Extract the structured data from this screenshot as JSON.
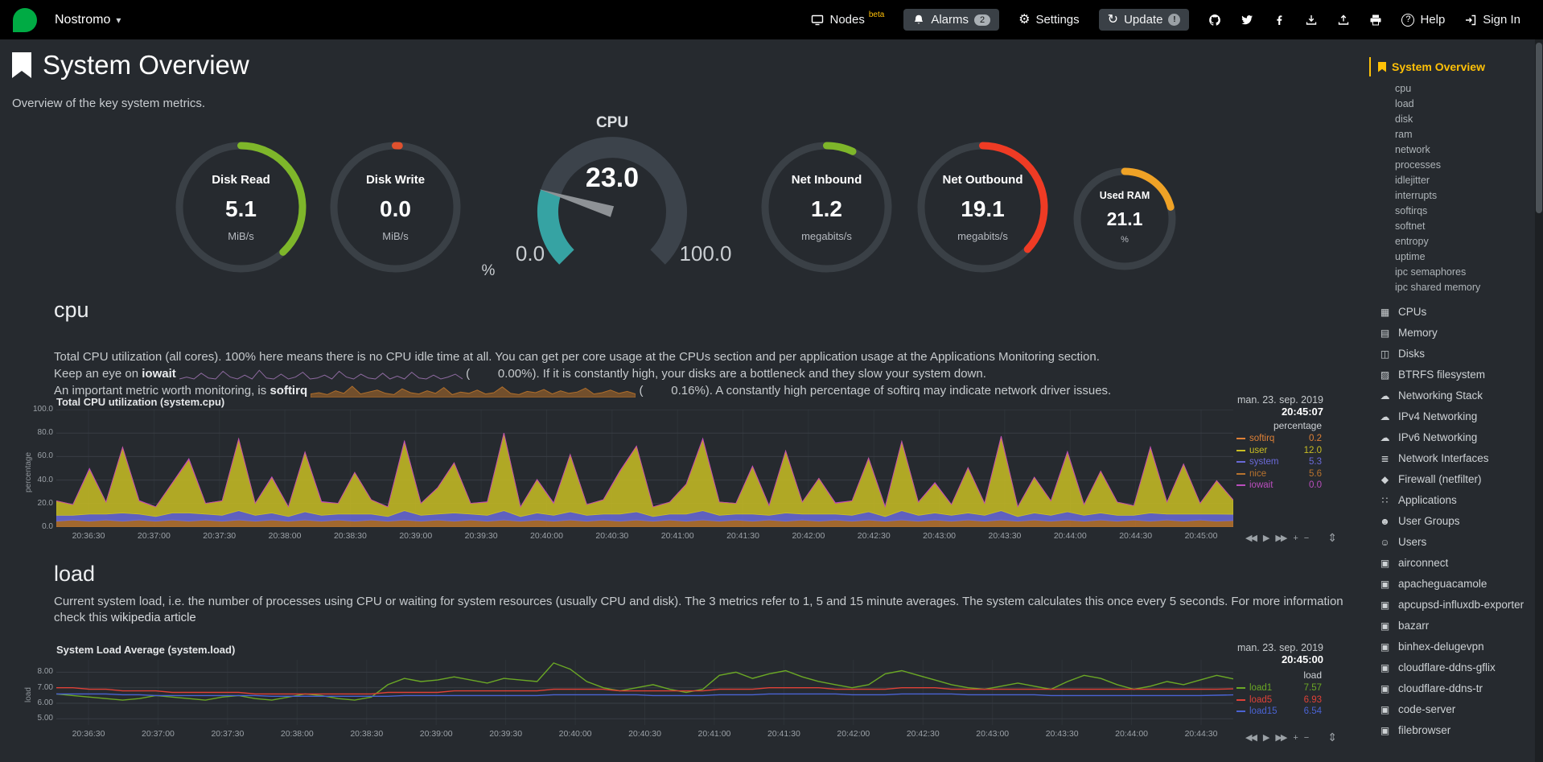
{
  "topbar": {
    "hostname": "Nostromo",
    "items": [
      {
        "id": "nodes",
        "icon": "nodes",
        "label": "Nodes",
        "badge": "beta",
        "badge_style": "beta"
      },
      {
        "id": "alarms",
        "icon": "bell",
        "label": "Alarms",
        "badge": "2",
        "badge_style": "pill",
        "button": true
      },
      {
        "id": "settings",
        "icon": "gear",
        "label": "Settings"
      },
      {
        "id": "update",
        "icon": "sync",
        "label": "Update",
        "badge": "!",
        "badge_style": "circle",
        "button": true
      },
      {
        "id": "github",
        "icon": "github"
      },
      {
        "id": "twitter",
        "icon": "twitter"
      },
      {
        "id": "facebook",
        "icon": "facebook"
      },
      {
        "id": "download",
        "icon": "download"
      },
      {
        "id": "upload",
        "icon": "upload"
      },
      {
        "id": "print",
        "icon": "print"
      },
      {
        "id": "help",
        "icon": "help",
        "label": "Help"
      },
      {
        "id": "signin",
        "icon": "sign-in",
        "label": "Sign In"
      }
    ]
  },
  "page": {
    "title": "System Overview",
    "subtitle": "Overview of the key system metrics."
  },
  "gauges": {
    "disk_read": {
      "title": "Disk Read",
      "value": "5.1",
      "units": "MiB/s",
      "percent": 38,
      "color": "#7EB62A"
    },
    "disk_write": {
      "title": "Disk Write",
      "value": "0.0",
      "units": "MiB/s",
      "percent": 1,
      "color": "#E0512E"
    },
    "cpu": {
      "title": "CPU",
      "value": "23.0",
      "units": "%",
      "min": "0.0",
      "max": "100.0",
      "percent": 23,
      "color": "#36A3A3"
    },
    "net_inbound": {
      "title": "Net Inbound",
      "value": "1.2",
      "units": "megabits/s",
      "percent": 7,
      "color": "#7EB62A"
    },
    "net_outbound": {
      "title": "Net Outbound",
      "value": "19.1",
      "units": "megabits/s",
      "percent": 37,
      "color": "#EF3B24"
    },
    "used_ram": {
      "title": "Used RAM",
      "value": "21.1",
      "units": "%",
      "percent": 21,
      "color": "#EFA226"
    }
  },
  "cpu_section": {
    "heading": "cpu",
    "desc1": "Total CPU utilization (all cores). 100% here means there is no CPU idle time at all. You can get per core usage at the CPUs section and per application usage at the Applications Monitoring section.",
    "desc2_pre": "Keep an eye on ",
    "desc2_bold": "iowait",
    "desc2_open": " (",
    "desc2_value": "0.00",
    "desc2_post": "%). If it is constantly high, your disks are a bottleneck and they slow your system down.",
    "desc3_pre": "An important metric worth monitoring, is ",
    "desc3_bold": "softirq",
    "desc3_open": " (",
    "desc3_value": "0.16",
    "desc3_post": "%). A constantly high percentage of softirq may indicate network driver issues.",
    "iowait_spark": {
      "color": "#8E6AA0",
      "values": [
        0,
        0.2,
        0,
        0.6,
        0.1,
        0,
        0.8,
        0.2,
        0,
        0.4,
        0,
        0.9,
        0.1,
        0,
        0.5,
        0,
        0.2,
        0.7,
        0,
        0.1,
        0.4,
        0,
        0.8,
        0.2,
        0,
        0.5,
        0.1,
        0,
        0.6,
        0,
        0.3,
        0,
        0.7,
        0.1,
        0,
        0.4,
        0,
        0.2,
        0.5,
        0
      ]
    },
    "softirq_spark": {
      "color": "#B06E2A",
      "values": [
        0.3,
        0.5,
        0.2,
        0.8,
        0.4,
        1.5,
        0.3,
        0.6,
        0.9,
        0.4,
        0.2,
        1.1,
        0.5,
        0.3,
        0.8,
        0.4,
        1.3,
        0.2,
        0.6,
        0.4,
        0.9,
        0.3,
        0.5,
        1.4,
        0.4,
        0.2,
        0.7,
        0.5,
        1,
        0.3,
        0.8,
        0.4,
        0.6,
        1.2,
        0.3,
        0.5,
        0.9,
        0.4,
        0.7,
        0.3
      ]
    }
  },
  "load_section": {
    "heading": "load",
    "desc": "Current system load, i.e. the number of processes using CPU or waiting for system resources (usually CPU and disk). The 3 metrics refer to 1, 5 and 15 minute averages. The system calculates this once every 5 seconds. For more information check this ",
    "link": "wikipedia article"
  },
  "toolbox": {
    "icons": [
      "pan-backward",
      "pan-play",
      "pan-forward",
      "zoom-in",
      "zoom-out"
    ],
    "resize": "resize"
  },
  "chart_data": [
    {
      "type": "area",
      "title": "Total CPU utilization (system.cpu)",
      "date": "man. 23. sep. 2019",
      "time": "20:45:07",
      "units": "percentage",
      "ylabel": "percentage",
      "ylim": [
        0,
        100
      ],
      "yticks": [
        {
          "v": 100,
          "label": "100.0"
        },
        {
          "v": 80,
          "label": "80.0"
        },
        {
          "v": 60,
          "label": "60.0"
        },
        {
          "v": 40,
          "label": "40.0"
        },
        {
          "v": 20,
          "label": "20.0"
        },
        {
          "v": 0,
          "label": "0.0"
        }
      ],
      "x_labels": [
        "20:36:30",
        "20:37:00",
        "20:37:30",
        "20:38:00",
        "20:38:30",
        "20:39:00",
        "20:39:30",
        "20:40:00",
        "20:40:30",
        "20:41:00",
        "20:41:30",
        "20:42:00",
        "20:42:30",
        "20:43:00",
        "20:43:30",
        "20:44:00",
        "20:44:30",
        "20:45:00"
      ],
      "series": [
        {
          "name": "nice",
          "color": "#B8732E",
          "values": [
            5,
            6,
            5,
            6,
            5,
            6,
            5,
            6,
            5,
            6,
            5,
            6,
            5,
            6,
            5,
            6,
            5,
            6,
            5,
            6,
            5,
            6,
            5,
            6,
            5,
            6,
            5,
            6,
            5,
            6,
            5,
            6,
            5,
            6,
            5,
            6,
            5,
            6,
            5,
            6,
            5,
            6,
            5,
            6,
            5,
            6,
            5,
            6,
            5,
            6,
            5,
            6,
            5,
            6,
            5,
            6,
            5,
            6,
            5,
            6,
            5,
            6,
            5,
            6,
            5,
            6,
            5,
            6,
            5,
            6,
            5,
            5.6
          ]
        },
        {
          "name": "system",
          "color": "#6A6AD8",
          "values": [
            5,
            4,
            6,
            5,
            7,
            5,
            4,
            6,
            7,
            5,
            5,
            8,
            5,
            6,
            4,
            7,
            5,
            5,
            6,
            5,
            4,
            8,
            5,
            5,
            7,
            5,
            5,
            8,
            4,
            6,
            5,
            7,
            5,
            5,
            6,
            7,
            4,
            5,
            6,
            8,
            5,
            5,
            6,
            4,
            7,
            5,
            6,
            5,
            5,
            7,
            4,
            8,
            5,
            6,
            5,
            6,
            5,
            8,
            4,
            6,
            5,
            7,
            5,
            6,
            5,
            4,
            7,
            5,
            6,
            5,
            6,
            5.3
          ]
        },
        {
          "name": "user",
          "color": "#C9BE23",
          "values": [
            12,
            9,
            38,
            10,
            55,
            11,
            8,
            25,
            45,
            9,
            12,
            60,
            10,
            30,
            8,
            50,
            11,
            9,
            35,
            12,
            8,
            58,
            10,
            22,
            42,
            9,
            11,
            65,
            8,
            28,
            10,
            48,
            9,
            12,
            36,
            55,
            8,
            10,
            25,
            60,
            11,
            9,
            40,
            8,
            52,
            10,
            30,
            9,
            12,
            45,
            8,
            58,
            11,
            25,
            9,
            38,
            10,
            62,
            8,
            30,
            12,
            50,
            9,
            35,
            11,
            8,
            55,
            10,
            42,
            9,
            28,
            12
          ]
        },
        {
          "name": "softirq",
          "color": "#DE8036",
          "values": [
            0.3,
            0.2,
            0.5,
            0.2,
            1,
            0.3,
            0.2,
            0.6,
            0.8,
            0.2,
            0.3,
            1.2,
            0.2,
            0.5,
            0.2,
            0.9,
            0.3,
            0.2,
            0.6,
            0.2,
            0.2,
            1,
            0.2,
            0.4,
            0.7,
            0.2,
            0.3,
            1.1,
            0.2,
            0.5,
            0.2,
            0.8,
            0.2,
            0.3,
            0.6,
            1,
            0.2,
            0.2,
            0.5,
            1.1,
            0.3,
            0.2,
            0.7,
            0.2,
            0.9,
            0.2,
            0.5,
            0.2,
            0.3,
            0.8,
            0.2,
            1,
            0.2,
            0.5,
            0.2,
            0.6,
            0.2,
            1.1,
            0.2,
            0.5,
            0.3,
            0.9,
            0.2,
            0.6,
            0.2,
            0.2,
            1,
            0.2,
            0.7,
            0.2,
            0.5,
            0.2
          ]
        },
        {
          "name": "iowait",
          "color": "#BA4EBE",
          "values": [
            0,
            0,
            0.4,
            0,
            0,
            0.3,
            0,
            0,
            0.5,
            0,
            0,
            0,
            0,
            0.3,
            0,
            0,
            0.4,
            0,
            0,
            0,
            0,
            0.5,
            0,
            0,
            0,
            0,
            0.3,
            0,
            0,
            0,
            0.4,
            0,
            0,
            0,
            0.3,
            0,
            0,
            0,
            0,
            0.4,
            0,
            0,
            0.3,
            0,
            0,
            0,
            0,
            0.5,
            0,
            0,
            0.3,
            0,
            0,
            0.4,
            0,
            0,
            0,
            0.3,
            0,
            0,
            0,
            0.4,
            0,
            0,
            0,
            0,
            0.3,
            0,
            0,
            0,
            0,
            0
          ]
        }
      ],
      "legend": [
        {
          "name": "softirq",
          "value": "0.2"
        },
        {
          "name": "user",
          "value": "12.0"
        },
        {
          "name": "system",
          "value": "5.3"
        },
        {
          "name": "nice",
          "value": "5.6"
        },
        {
          "name": "iowait",
          "value": "0.0"
        }
      ]
    },
    {
      "type": "line",
      "title": "System Load Average (system.load)",
      "date": "man. 23. sep. 2019",
      "time": "20:45:00",
      "units": "load",
      "ylabel": "load",
      "ylim": [
        4.6,
        8.8
      ],
      "yticks": [
        {
          "v": 8,
          "label": "8.00"
        },
        {
          "v": 7,
          "label": "7.00"
        },
        {
          "v": 6,
          "label": "6.00"
        },
        {
          "v": 5,
          "label": "5.00"
        }
      ],
      "x_labels": [
        "20:36:30",
        "20:37:00",
        "20:37:30",
        "20:38:00",
        "20:38:30",
        "20:39:00",
        "20:39:30",
        "20:40:00",
        "20:40:30",
        "20:41:00",
        "20:41:30",
        "20:42:00",
        "20:42:30",
        "20:43:00",
        "20:43:30",
        "20:44:00",
        "20:44:30"
      ],
      "series": [
        {
          "name": "load1",
          "color": "#6BA825",
          "values": [
            6.6,
            6.5,
            6.4,
            6.3,
            6.2,
            6.3,
            6.5,
            6.4,
            6.3,
            6.2,
            6.4,
            6.5,
            6.3,
            6.2,
            6.4,
            6.6,
            6.5,
            6.3,
            6.2,
            6.4,
            7.2,
            7.6,
            7.4,
            7.5,
            7.7,
            7.5,
            7.3,
            7.6,
            7.5,
            7.4,
            8.6,
            8.2,
            7.4,
            7.0,
            6.8,
            7.0,
            7.2,
            6.9,
            6.7,
            6.9,
            7.8,
            8.0,
            7.6,
            7.9,
            8.1,
            7.7,
            7.4,
            7.2,
            7.0,
            7.2,
            7.9,
            8.1,
            7.8,
            7.5,
            7.2,
            7.0,
            6.9,
            7.1,
            7.3,
            7.1,
            6.9,
            7.4,
            7.8,
            7.6,
            7.2,
            6.9,
            7.1,
            7.4,
            7.2,
            7.5,
            7.8,
            7.57
          ]
        },
        {
          "name": "load5",
          "color": "#DE4137",
          "values": [
            7.0,
            7.0,
            6.9,
            6.9,
            6.8,
            6.8,
            6.8,
            6.7,
            6.7,
            6.7,
            6.7,
            6.7,
            6.6,
            6.6,
            6.6,
            6.6,
            6.6,
            6.6,
            6.6,
            6.6,
            6.7,
            6.7,
            6.7,
            6.7,
            6.8,
            6.8,
            6.8,
            6.8,
            6.8,
            6.8,
            6.9,
            6.9,
            6.9,
            6.9,
            6.8,
            6.8,
            6.8,
            6.8,
            6.8,
            6.8,
            6.9,
            6.9,
            6.9,
            7.0,
            7.0,
            7.0,
            7.0,
            6.9,
            6.9,
            6.9,
            6.9,
            7.0,
            7.0,
            7.0,
            6.9,
            6.9,
            6.9,
            6.9,
            6.9,
            6.9,
            6.9,
            6.9,
            6.9,
            6.9,
            6.9,
            6.9,
            6.9,
            6.9,
            6.9,
            6.9,
            6.9,
            6.93
          ]
        },
        {
          "name": "load15",
          "color": "#4A63D3",
          "values": [
            6.6,
            6.6,
            6.6,
            6.6,
            6.55,
            6.55,
            6.5,
            6.5,
            6.5,
            6.5,
            6.5,
            6.5,
            6.5,
            6.45,
            6.45,
            6.45,
            6.45,
            6.45,
            6.45,
            6.45,
            6.45,
            6.5,
            6.5,
            6.5,
            6.5,
            6.5,
            6.5,
            6.5,
            6.5,
            6.5,
            6.55,
            6.55,
            6.55,
            6.55,
            6.55,
            6.55,
            6.5,
            6.5,
            6.5,
            6.5,
            6.55,
            6.55,
            6.55,
            6.6,
            6.6,
            6.6,
            6.6,
            6.6,
            6.55,
            6.55,
            6.55,
            6.6,
            6.6,
            6.6,
            6.6,
            6.55,
            6.55,
            6.55,
            6.55,
            6.55,
            6.5,
            6.5,
            6.5,
            6.5,
            6.5,
            6.5,
            6.5,
            6.5,
            6.5,
            6.5,
            6.52,
            6.54
          ]
        }
      ],
      "legend": [
        {
          "name": "load1",
          "value": "7.57"
        },
        {
          "name": "load5",
          "value": "6.93"
        },
        {
          "name": "load15",
          "value": "6.54"
        }
      ]
    }
  ],
  "sidebar": {
    "active": {
      "label": "System Overview",
      "icon": "bookmark"
    },
    "subitems": [
      "cpu",
      "load",
      "disk",
      "ram",
      "network",
      "processes",
      "idlejitter",
      "interrupts",
      "softirqs",
      "softnet",
      "entropy",
      "uptime",
      "ipc semaphores",
      "ipc shared memory"
    ],
    "sections": [
      {
        "label": "CPUs",
        "icon": "microchip"
      },
      {
        "label": "Memory",
        "icon": "memory"
      },
      {
        "label": "Disks",
        "icon": "hdd"
      },
      {
        "label": "BTRFS filesystem",
        "icon": "folder"
      },
      {
        "label": "Networking Stack",
        "icon": "cloud"
      },
      {
        "label": "IPv4 Networking",
        "icon": "cloud"
      },
      {
        "label": "IPv6 Networking",
        "icon": "cloud"
      },
      {
        "label": "Network Interfaces",
        "icon": "ethernet"
      },
      {
        "label": "Firewall (netfilter)",
        "icon": "shield"
      },
      {
        "label": "Applications",
        "icon": "apps"
      },
      {
        "label": "User Groups",
        "icon": "users"
      },
      {
        "label": "Users",
        "icon": "user"
      },
      {
        "label": "airconnect",
        "icon": "cube"
      },
      {
        "label": "apacheguacamole",
        "icon": "cube"
      },
      {
        "label": "apcupsd-influxdb-exporter",
        "icon": "cube"
      },
      {
        "label": "bazarr",
        "icon": "cube"
      },
      {
        "label": "binhex-delugevpn",
        "icon": "cube"
      },
      {
        "label": "cloudflare-ddns-gflix",
        "icon": "cube"
      },
      {
        "label": "cloudflare-ddns-tr",
        "icon": "cube"
      },
      {
        "label": "code-server",
        "icon": "cube"
      },
      {
        "label": "filebrowser",
        "icon": "cube"
      }
    ]
  }
}
